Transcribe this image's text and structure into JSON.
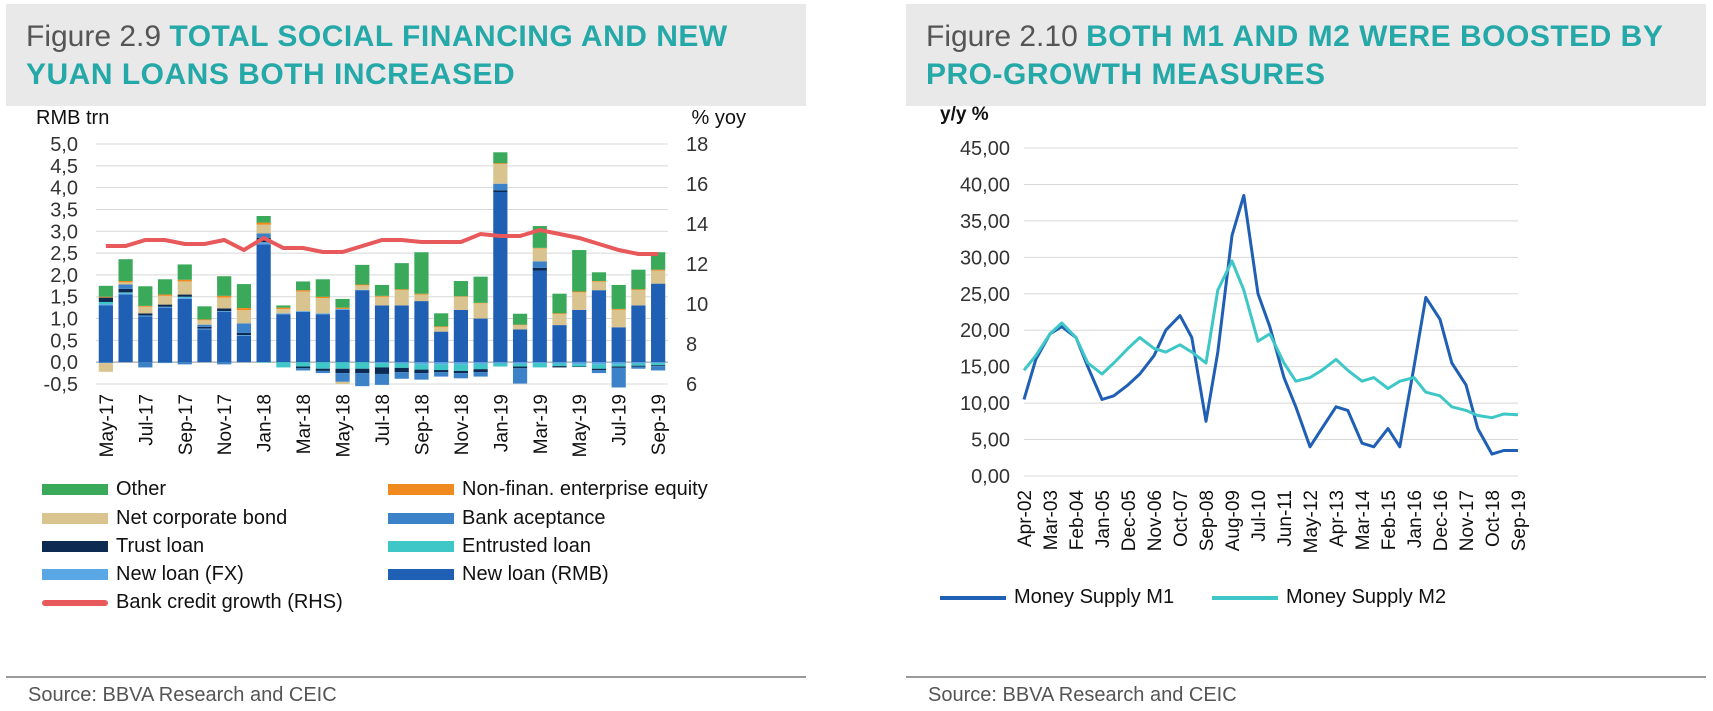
{
  "left_panel": {
    "figure_prefix": "Figure 2.9",
    "figure_caption": "TOTAL SOCIAL FINANCING AND NEW YUAN LOANS BOTH INCREASED",
    "source": "Source: BBVA Research and CEIC"
  },
  "right_panel": {
    "figure_prefix": "Figure 2.10",
    "figure_caption": "BOTH M1 AND M2 WERE BOOSTED BY PRO-GROWTH MEASURES",
    "source": "Source: BBVA Research and CEIC"
  },
  "chart_data": [
    {
      "type": "bar",
      "stacked": true,
      "ylabel_left": "RMB trn",
      "ylabel_right": "% yoy",
      "ylim_left": [
        -0.5,
        5.0
      ],
      "ylim_right": [
        6,
        18
      ],
      "yticks_left": [
        "5,0",
        "4,5",
        "4,0",
        "3,5",
        "3,0",
        "2,5",
        "2,0",
        "1,5",
        "1,0",
        "0,5",
        "0,0",
        "-0,5"
      ],
      "yticks_right": [
        "18",
        "16",
        "14",
        "12",
        "10",
        "8",
        "6"
      ],
      "categories": [
        "May-17",
        "Jun-17",
        "Jul-17",
        "Aug-17",
        "Sep-17",
        "Oct-17",
        "Nov-17",
        "Dec-17",
        "Jan-18",
        "Feb-18",
        "Mar-18",
        "Apr-18",
        "May-18",
        "Jun-18",
        "Jul-18",
        "Aug-18",
        "Sep-18",
        "Oct-18",
        "Nov-18",
        "Dec-18",
        "Jan-19",
        "Feb-19",
        "Mar-19",
        "Apr-19",
        "May-19",
        "Jun-19",
        "Jul-19",
        "Aug-19",
        "Sep-19"
      ],
      "x_tick_labels": [
        "May-17",
        "Jul-17",
        "Sep-17",
        "Nov-17",
        "Jan-18",
        "Mar-18",
        "May-18",
        "Jul-18",
        "Sep-18",
        "Nov-18",
        "Jan-19",
        "Mar-19",
        "May-19",
        "Jul-19",
        "Sep-19"
      ],
      "series": [
        {
          "name": "New loan (RMB)",
          "color": "#1f5fb4",
          "values": [
            1.3,
            1.55,
            1.05,
            1.25,
            1.45,
            0.75,
            1.15,
            0.6,
            2.7,
            1.1,
            1.15,
            1.1,
            1.2,
            1.65,
            1.3,
            1.3,
            1.4,
            0.7,
            1.2,
            1.0,
            3.9,
            0.75,
            2.1,
            0.85,
            1.2,
            1.65,
            0.8,
            1.3,
            1.8
          ]
        },
        {
          "name": "New loan (FX)",
          "color": "#5aa7e6",
          "values": [
            0.03,
            0.03,
            0.02,
            0.02,
            0.03,
            0.02,
            0.02,
            0.02,
            0.05,
            0.02,
            0.02,
            0.02,
            0.02,
            0.01,
            -0.02,
            -0.03,
            -0.05,
            -0.05,
            -0.05,
            -0.04,
            -0.03,
            -0.04,
            -0.02,
            -0.03,
            -0.05,
            -0.05,
            -0.05,
            -0.03,
            -0.02
          ]
        },
        {
          "name": "Entrusted loan",
          "color": "#3fc7c7",
          "values": [
            0.05,
            0.02,
            0.0,
            0.0,
            0.02,
            0.0,
            0.0,
            0.0,
            -0.01,
            -0.12,
            -0.1,
            -0.15,
            -0.15,
            -0.15,
            -0.1,
            -0.1,
            -0.12,
            -0.13,
            -0.15,
            -0.12,
            -0.07,
            -0.06,
            -0.1,
            -0.06,
            -0.05,
            -0.1,
            -0.05,
            -0.05,
            -0.05
          ]
        },
        {
          "name": "Trust loan",
          "color": "#0d2a52",
          "values": [
            0.1,
            0.08,
            0.05,
            0.05,
            0.05,
            0.04,
            0.06,
            0.05,
            0.1,
            0.0,
            -0.04,
            -0.05,
            -0.1,
            -0.1,
            -0.15,
            -0.1,
            -0.08,
            -0.05,
            -0.05,
            -0.07,
            0.04,
            -0.04,
            0.06,
            -0.03,
            -0.01,
            -0.03,
            -0.03,
            -0.02,
            -0.02
          ]
        },
        {
          "name": "Bank aceptance",
          "color": "#3b82c8",
          "values": [
            -0.02,
            0.1,
            -0.12,
            -0.02,
            -0.05,
            0.05,
            -0.05,
            0.22,
            0.1,
            0.0,
            -0.05,
            -0.05,
            -0.2,
            -0.3,
            -0.25,
            -0.15,
            -0.15,
            -0.1,
            -0.12,
            -0.1,
            0.15,
            -0.35,
            0.15,
            0.0,
            0.0,
            -0.07,
            -0.45,
            -0.05,
            -0.1
          ]
        },
        {
          "name": "Net corporate bond",
          "color": "#d9c48f",
          "values": [
            -0.2,
            0.05,
            0.15,
            0.2,
            0.3,
            0.1,
            0.25,
            0.3,
            0.2,
            0.1,
            0.45,
            0.35,
            -0.05,
            0.1,
            0.2,
            0.35,
            0.15,
            0.1,
            0.3,
            0.35,
            0.45,
            0.1,
            0.3,
            0.25,
            0.4,
            0.2,
            0.4,
            0.35,
            0.3
          ]
        },
        {
          "name": "Non-finan. enterprise equity",
          "color": "#f08a1e",
          "values": [
            0.02,
            0.03,
            0.02,
            0.03,
            0.04,
            0.02,
            0.04,
            0.05,
            0.05,
            0.03,
            0.03,
            0.03,
            0.03,
            0.02,
            0.02,
            0.02,
            0.02,
            0.02,
            0.01,
            0.01,
            0.02,
            0.01,
            0.01,
            0.02,
            0.02,
            0.01,
            0.02,
            0.02,
            0.02
          ]
        },
        {
          "name": "Other",
          "color": "#3aaa5a",
          "values": [
            0.25,
            0.5,
            0.45,
            0.35,
            0.35,
            0.3,
            0.45,
            0.55,
            0.15,
            0.05,
            0.2,
            0.4,
            0.2,
            0.45,
            0.25,
            0.6,
            0.95,
            0.3,
            0.35,
            0.6,
            0.25,
            0.25,
            0.5,
            0.45,
            0.95,
            0.2,
            0.55,
            0.45,
            0.4
          ]
        }
      ],
      "line_series": {
        "name": "Bank credit growth (RHS)",
        "color": "#e8595b",
        "axis": "right",
        "values": [
          12.9,
          12.9,
          13.2,
          13.2,
          13.0,
          13.0,
          13.2,
          12.7,
          13.3,
          12.8,
          12.8,
          12.6,
          12.6,
          12.9,
          13.2,
          13.2,
          13.1,
          13.1,
          13.1,
          13.5,
          13.4,
          13.4,
          13.7,
          13.5,
          13.3,
          13.0,
          12.7,
          12.5,
          12.5
        ]
      }
    },
    {
      "type": "line",
      "ylabel": "y/y %",
      "ylim": [
        0,
        45
      ],
      "yticks": [
        "45,00",
        "40,00",
        "35,00",
        "30,00",
        "25,00",
        "20,00",
        "15,00",
        "10,00",
        "5,00",
        "0,00"
      ],
      "x_tick_labels": [
        "Apr-02",
        "Mar-03",
        "Feb-04",
        "Jan-05",
        "Dec-05",
        "Nov-06",
        "Oct-07",
        "Sep-08",
        "Aug-09",
        "Jul-10",
        "Jun-11",
        "May-12",
        "Apr-13",
        "Mar-14",
        "Feb-15",
        "Jan-16",
        "Dec-16",
        "Nov-17",
        "Oct-18",
        "Sep-19"
      ],
      "series": [
        {
          "name": "Money Supply M1",
          "color": "#1f5fb4",
          "x": [
            "Apr-02",
            "Sep-02",
            "Mar-03",
            "Aug-03",
            "Feb-04",
            "Jul-04",
            "Jan-05",
            "Jun-05",
            "Dec-05",
            "May-06",
            "Nov-06",
            "Apr-07",
            "Oct-07",
            "Mar-08",
            "Sep-08",
            "Feb-09",
            "Aug-09",
            "Jan-10",
            "Jul-10",
            "Dec-10",
            "Jun-11",
            "Nov-11",
            "May-12",
            "Oct-12",
            "Apr-13",
            "Sep-13",
            "Mar-14",
            "Aug-14",
            "Feb-15",
            "Jul-15",
            "Jan-16",
            "Jun-16",
            "Dec-16",
            "May-17",
            "Nov-17",
            "Apr-18",
            "Oct-18",
            "Mar-19",
            "Sep-19"
          ],
          "values": [
            10.5,
            16.0,
            19.5,
            20.5,
            19.0,
            15.0,
            10.5,
            11.0,
            12.5,
            14.0,
            16.5,
            20.0,
            22.0,
            19.0,
            7.5,
            17.0,
            33.0,
            38.5,
            25.0,
            20.5,
            13.5,
            9.5,
            4.0,
            6.5,
            9.5,
            9.0,
            4.5,
            4.0,
            6.5,
            4.0,
            15.0,
            24.5,
            21.5,
            15.5,
            12.5,
            6.5,
            3.0,
            3.5,
            3.5
          ]
        },
        {
          "name": "Money Supply M2",
          "color": "#3fc7c7",
          "x": [
            "Apr-02",
            "Sep-02",
            "Mar-03",
            "Aug-03",
            "Feb-04",
            "Jul-04",
            "Jan-05",
            "Jun-05",
            "Dec-05",
            "May-06",
            "Nov-06",
            "Apr-07",
            "Oct-07",
            "Mar-08",
            "Sep-08",
            "Feb-09",
            "Aug-09",
            "Jan-10",
            "Jul-10",
            "Dec-10",
            "Jun-11",
            "Nov-11",
            "May-12",
            "Oct-12",
            "Apr-13",
            "Sep-13",
            "Mar-14",
            "Aug-14",
            "Feb-15",
            "Jul-15",
            "Jan-16",
            "Jun-16",
            "Dec-16",
            "May-17",
            "Nov-17",
            "Apr-18",
            "Oct-18",
            "Mar-19",
            "Sep-19"
          ],
          "values": [
            14.5,
            16.5,
            19.5,
            21.0,
            19.0,
            15.5,
            14.0,
            15.5,
            17.5,
            19.0,
            17.5,
            17.0,
            18.0,
            17.0,
            15.5,
            25.5,
            29.5,
            25.5,
            18.5,
            19.5,
            15.5,
            13.0,
            13.5,
            14.5,
            16.0,
            14.5,
            13.0,
            13.5,
            12.0,
            13.0,
            13.5,
            11.5,
            11.0,
            9.5,
            9.0,
            8.3,
            8.0,
            8.5,
            8.4
          ]
        }
      ]
    }
  ]
}
